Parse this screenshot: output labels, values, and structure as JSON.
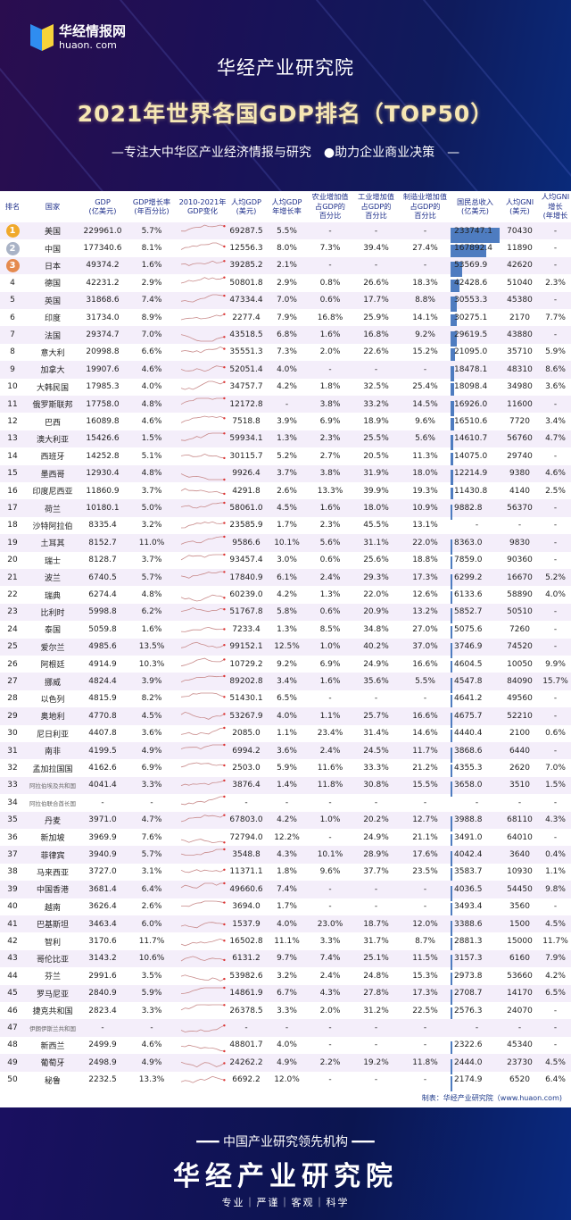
{
  "header": {
    "logo_name": "华经情报网",
    "logo_url": "huaon. com",
    "org": "华经产业研究院",
    "title": "2021年世界各国GDP排名（TOP50）",
    "slogan": "—专注大中华区产业经济情报与研究　●助力企业商业决策　—"
  },
  "table": {
    "columns": [
      "排名",
      "国家",
      "GDP\n(亿美元)",
      "GDP增长率\n(年百分比)",
      "2010-2021年\nGDP变化",
      "人均GDP\n(美元)",
      "人均GDP\n年增长率",
      "农业增加值\n占GDP的\n百分比",
      "工业增加值\n占GDP的\n百分比",
      "制造业增加值\n占GDP的\n百分比",
      "国民总收入\n(亿美元)",
      "人均GNI\n(美元)",
      "人均GNI\n增长\n(年增长"
    ],
    "medal_colors": [
      "#f0a92c",
      "#a9b3c6",
      "#e58a4e"
    ],
    "bar_color": "#4e7cc0",
    "rows": [
      [
        "1",
        "美国",
        "229961.0",
        "5.7%",
        "69287.5",
        "5.5%",
        "-",
        "-",
        "-",
        "233747.1",
        "70430",
        "-"
      ],
      [
        "2",
        "中国",
        "177340.6",
        "8.1%",
        "12556.3",
        "8.0%",
        "7.3%",
        "39.4%",
        "27.4%",
        "167892.4",
        "11890",
        "-"
      ],
      [
        "3",
        "日本",
        "49374.2",
        "1.6%",
        "39285.2",
        "2.1%",
        "-",
        "-",
        "-",
        "53569.9",
        "42620",
        "-"
      ],
      [
        "4",
        "德国",
        "42231.2",
        "2.9%",
        "50801.8",
        "2.9%",
        "0.8%",
        "26.6%",
        "18.3%",
        "42428.6",
        "51040",
        "2.3%"
      ],
      [
        "5",
        "英国",
        "31868.6",
        "7.4%",
        "47334.4",
        "7.0%",
        "0.6%",
        "17.7%",
        "8.8%",
        "30553.3",
        "45380",
        "-"
      ],
      [
        "6",
        "印度",
        "31734.0",
        "8.9%",
        "2277.4",
        "7.9%",
        "16.8%",
        "25.9%",
        "14.1%",
        "30275.1",
        "2170",
        "7.7%"
      ],
      [
        "7",
        "法国",
        "29374.7",
        "7.0%",
        "43518.5",
        "6.8%",
        "1.6%",
        "16.8%",
        "9.2%",
        "29619.5",
        "43880",
        "-"
      ],
      [
        "8",
        "意大利",
        "20998.8",
        "6.6%",
        "35551.3",
        "7.3%",
        "2.0%",
        "22.6%",
        "15.2%",
        "21095.0",
        "35710",
        "5.9%"
      ],
      [
        "9",
        "加拿大",
        "19907.6",
        "4.6%",
        "52051.4",
        "4.0%",
        "-",
        "-",
        "-",
        "18478.1",
        "48310",
        "8.6%"
      ],
      [
        "10",
        "大韩民国",
        "17985.3",
        "4.0%",
        "34757.7",
        "4.2%",
        "1.8%",
        "32.5%",
        "25.4%",
        "18098.4",
        "34980",
        "3.6%"
      ],
      [
        "11",
        "俄罗斯联邦",
        "17758.0",
        "4.8%",
        "12172.8",
        "-",
        "3.8%",
        "33.2%",
        "14.5%",
        "16926.0",
        "11600",
        "-"
      ],
      [
        "12",
        "巴西",
        "16089.8",
        "4.6%",
        "7518.8",
        "3.9%",
        "6.9%",
        "18.9%",
        "9.6%",
        "16510.6",
        "7720",
        "3.4%"
      ],
      [
        "13",
        "澳大利亚",
        "15426.6",
        "1.5%",
        "59934.1",
        "1.3%",
        "2.3%",
        "25.5%",
        "5.6%",
        "14610.7",
        "56760",
        "4.7%"
      ],
      [
        "14",
        "西班牙",
        "14252.8",
        "5.1%",
        "30115.7",
        "5.2%",
        "2.7%",
        "20.5%",
        "11.3%",
        "14075.0",
        "29740",
        "-"
      ],
      [
        "15",
        "墨西哥",
        "12930.4",
        "4.8%",
        "9926.4",
        "3.7%",
        "3.8%",
        "31.9%",
        "18.0%",
        "12214.9",
        "9380",
        "4.6%"
      ],
      [
        "16",
        "印度尼西亚",
        "11860.9",
        "3.7%",
        "4291.8",
        "2.6%",
        "13.3%",
        "39.9%",
        "19.3%",
        "11430.8",
        "4140",
        "2.5%"
      ],
      [
        "17",
        "荷兰",
        "10180.1",
        "5.0%",
        "58061.0",
        "4.5%",
        "1.6%",
        "18.0%",
        "10.9%",
        "9882.8",
        "56370",
        "-"
      ],
      [
        "18",
        "沙特阿拉伯",
        "8335.4",
        "3.2%",
        "23585.9",
        "1.7%",
        "2.3%",
        "45.5%",
        "13.1%",
        "-",
        "-",
        "-"
      ],
      [
        "19",
        "土耳其",
        "8152.7",
        "11.0%",
        "9586.6",
        "10.1%",
        "5.6%",
        "31.1%",
        "22.0%",
        "8363.0",
        "9830",
        "-"
      ],
      [
        "20",
        "瑞士",
        "8128.7",
        "3.7%",
        "93457.4",
        "3.0%",
        "0.6%",
        "25.6%",
        "18.8%",
        "7859.0",
        "90360",
        "-"
      ],
      [
        "21",
        "波兰",
        "6740.5",
        "5.7%",
        "17840.9",
        "6.1%",
        "2.4%",
        "29.3%",
        "17.3%",
        "6299.2",
        "16670",
        "5.2%"
      ],
      [
        "22",
        "瑞典",
        "6274.4",
        "4.8%",
        "60239.0",
        "4.2%",
        "1.3%",
        "22.0%",
        "12.6%",
        "6133.6",
        "58890",
        "4.0%"
      ],
      [
        "23",
        "比利时",
        "5998.8",
        "6.2%",
        "51767.8",
        "5.8%",
        "0.6%",
        "20.9%",
        "13.2%",
        "5852.7",
        "50510",
        "-"
      ],
      [
        "24",
        "泰国",
        "5059.8",
        "1.6%",
        "7233.4",
        "1.3%",
        "8.5%",
        "34.8%",
        "27.0%",
        "5075.6",
        "7260",
        "-"
      ],
      [
        "25",
        "爱尔兰",
        "4985.6",
        "13.5%",
        "99152.1",
        "12.5%",
        "1.0%",
        "40.2%",
        "37.0%",
        "3746.9",
        "74520",
        "-"
      ],
      [
        "26",
        "阿根廷",
        "4914.9",
        "10.3%",
        "10729.2",
        "9.2%",
        "6.9%",
        "24.9%",
        "16.6%",
        "4604.5",
        "10050",
        "9.9%"
      ],
      [
        "27",
        "挪威",
        "4824.4",
        "3.9%",
        "89202.8",
        "3.4%",
        "1.6%",
        "35.6%",
        "5.5%",
        "4547.8",
        "84090",
        "15.7%"
      ],
      [
        "28",
        "以色列",
        "4815.9",
        "8.2%",
        "51430.1",
        "6.5%",
        "-",
        "-",
        "-",
        "4641.2",
        "49560",
        "-"
      ],
      [
        "29",
        "奥地利",
        "4770.8",
        "4.5%",
        "53267.9",
        "4.0%",
        "1.1%",
        "25.7%",
        "16.6%",
        "4675.7",
        "52210",
        "-"
      ],
      [
        "30",
        "尼日利亚",
        "4407.8",
        "3.6%",
        "2085.0",
        "1.1%",
        "23.4%",
        "31.4%",
        "14.6%",
        "4440.4",
        "2100",
        "0.6%"
      ],
      [
        "31",
        "南非",
        "4199.5",
        "4.9%",
        "6994.2",
        "3.6%",
        "2.4%",
        "24.5%",
        "11.7%",
        "3868.6",
        "6440",
        "-"
      ],
      [
        "32",
        "孟加拉国国",
        "4162.6",
        "6.9%",
        "2503.0",
        "5.9%",
        "11.6%",
        "33.3%",
        "21.2%",
        "4355.3",
        "2620",
        "7.0%"
      ],
      [
        "33",
        "阿拉伯埃及共和国",
        "4041.4",
        "3.3%",
        "3876.4",
        "1.4%",
        "11.8%",
        "30.8%",
        "15.5%",
        "3658.0",
        "3510",
        "1.5%"
      ],
      [
        "34",
        "阿拉伯联合酋长国",
        "-",
        "-",
        "-",
        "-",
        "-",
        "-",
        "-",
        "-",
        "-",
        "-"
      ],
      [
        "35",
        "丹麦",
        "3971.0",
        "4.7%",
        "67803.0",
        "4.2%",
        "1.0%",
        "20.2%",
        "12.7%",
        "3988.8",
        "68110",
        "4.3%"
      ],
      [
        "36",
        "新加坡",
        "3969.9",
        "7.6%",
        "72794.0",
        "12.2%",
        "-",
        "24.9%",
        "21.1%",
        "3491.0",
        "64010",
        "-"
      ],
      [
        "37",
        "菲律宾",
        "3940.9",
        "5.7%",
        "3548.8",
        "4.3%",
        "10.1%",
        "28.9%",
        "17.6%",
        "4042.4",
        "3640",
        "0.4%"
      ],
      [
        "38",
        "马来西亚",
        "3727.0",
        "3.1%",
        "11371.1",
        "1.8%",
        "9.6%",
        "37.7%",
        "23.5%",
        "3583.7",
        "10930",
        "1.1%"
      ],
      [
        "39",
        "中国香港",
        "3681.4",
        "6.4%",
        "49660.6",
        "7.4%",
        "-",
        "-",
        "-",
        "4036.5",
        "54450",
        "9.8%"
      ],
      [
        "40",
        "越南",
        "3626.4",
        "2.6%",
        "3694.0",
        "1.7%",
        "-",
        "-",
        "-",
        "3493.4",
        "3560",
        "-"
      ],
      [
        "41",
        "巴基斯坦",
        "3463.4",
        "6.0%",
        "1537.9",
        "4.0%",
        "23.0%",
        "18.7%",
        "12.0%",
        "3388.6",
        "1500",
        "4.5%"
      ],
      [
        "42",
        "智利",
        "3170.6",
        "11.7%",
        "16502.8",
        "11.1%",
        "3.3%",
        "31.7%",
        "8.7%",
        "2881.3",
        "15000",
        "11.7%"
      ],
      [
        "43",
        "哥伦比亚",
        "3143.2",
        "10.6%",
        "6131.2",
        "9.7%",
        "7.4%",
        "25.1%",
        "11.5%",
        "3157.3",
        "6160",
        "7.9%"
      ],
      [
        "44",
        "芬兰",
        "2991.6",
        "3.5%",
        "53982.6",
        "3.2%",
        "2.4%",
        "24.8%",
        "15.3%",
        "2973.8",
        "53660",
        "4.2%"
      ],
      [
        "45",
        "罗马尼亚",
        "2840.9",
        "5.9%",
        "14861.9",
        "6.7%",
        "4.3%",
        "27.8%",
        "17.3%",
        "2708.7",
        "14170",
        "6.5%"
      ],
      [
        "46",
        "捷克共和国",
        "2823.4",
        "3.3%",
        "26378.5",
        "3.3%",
        "2.0%",
        "31.2%",
        "22.5%",
        "2576.3",
        "24070",
        "-"
      ],
      [
        "47",
        "伊朗伊斯兰共和国",
        "-",
        "-",
        "-",
        "-",
        "-",
        "-",
        "-",
        "-",
        "-",
        "-"
      ],
      [
        "48",
        "新西兰",
        "2499.9",
        "4.6%",
        "48801.7",
        "4.0%",
        "-",
        "-",
        "-",
        "2322.6",
        "45340",
        "-"
      ],
      [
        "49",
        "葡萄牙",
        "2498.9",
        "4.9%",
        "24262.2",
        "4.9%",
        "2.2%",
        "19.2%",
        "11.8%",
        "2444.0",
        "23730",
        "4.5%"
      ],
      [
        "50",
        "秘鲁",
        "2232.5",
        "13.3%",
        "6692.2",
        "12.0%",
        "-",
        "-",
        "-",
        "2174.9",
        "6520",
        "6.4%"
      ]
    ]
  },
  "credit": "制表：华经产业研究院（www.huaon.com)",
  "footer": {
    "line1": "━━━ 中国产业研究领先机构 ━━━",
    "brand": "华经产业研究院",
    "motto": "专业｜严谨｜客观｜科学"
  }
}
